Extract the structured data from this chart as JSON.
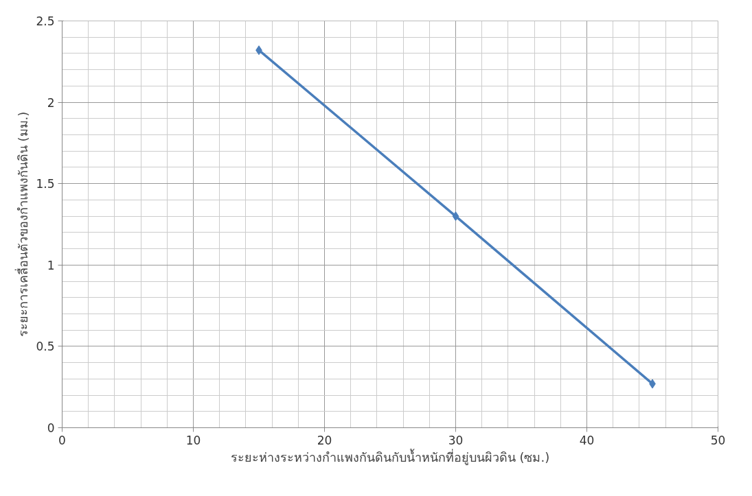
{
  "chart_data": {
    "type": "line",
    "xlabel": "ระยะห่างระหว่างกำแพงกันดินกับน้ำหนักที่อยู่บนผิวดิน (ซม.)",
    "ylabel": "ระยะการเคลื่อนตัวของกำแพงกันดิน (มม.)",
    "x": [
      15,
      30,
      45
    ],
    "series": [
      {
        "color": "#4a7ebb",
        "values": [
          2.32,
          1.3,
          0.27
        ]
      }
    ],
    "xlim": [
      0,
      50
    ],
    "xticks": [
      0,
      10,
      20,
      30,
      40,
      50
    ],
    "ylim": [
      0,
      2.5
    ],
    "yticks": [
      0,
      0.5,
      1,
      1.5,
      2,
      2.5
    ],
    "grid": true,
    "marker": "diamond",
    "line_style": "solid"
  }
}
